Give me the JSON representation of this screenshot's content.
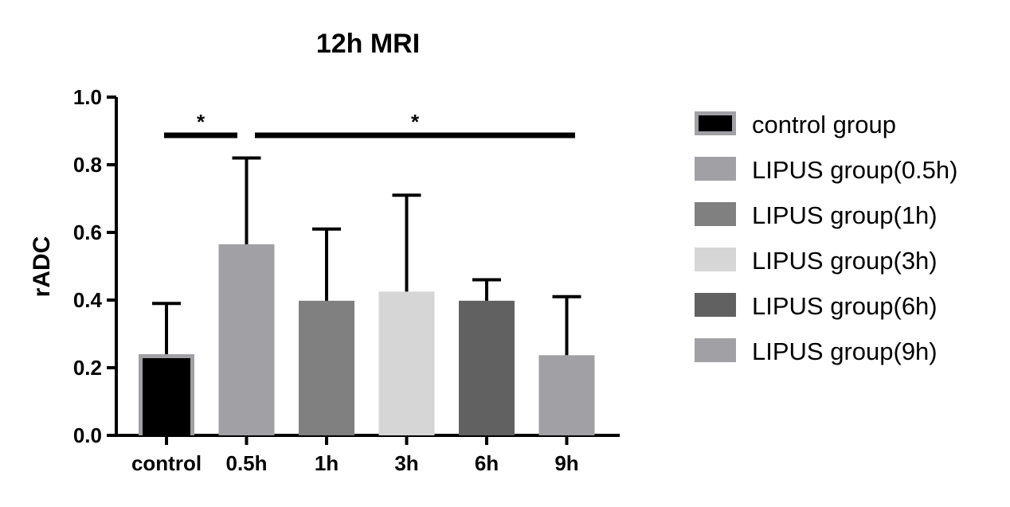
{
  "chart_data": {
    "type": "bar",
    "title": "12h MRI",
    "xlabel": "",
    "ylabel": "rADC",
    "ylim": [
      0,
      1.0
    ],
    "yticks": [
      "0.0",
      "0.2",
      "0.4",
      "0.6",
      "0.8",
      "1.0"
    ],
    "categories": [
      "control",
      "0.5h",
      "1h",
      "3h",
      "6h",
      "9h"
    ],
    "values": [
      0.24,
      0.565,
      0.398,
      0.425,
      0.398,
      0.237
    ],
    "error_upper": [
      0.39,
      0.82,
      0.61,
      0.71,
      0.46,
      0.41
    ],
    "colors": [
      "#000000",
      "#a1a0a5",
      "#808080",
      "#d6d6d6",
      "#616161",
      "#a1a0a5"
    ],
    "legend": {
      "position": "right",
      "entries": [
        {
          "label": "control group",
          "color": "#000000"
        },
        {
          "label": "LIPUS group(0.5h)",
          "color": "#a1a0a5"
        },
        {
          "label": "LIPUS group(1h)",
          "color": "#808080"
        },
        {
          "label": "LIPUS group(3h)",
          "color": "#d6d6d6"
        },
        {
          "label": "LIPUS group(6h)",
          "color": "#616161"
        },
        {
          "label": "LIPUS group(9h)",
          "color": "#a1a0a5"
        }
      ]
    },
    "significance": [
      {
        "label": "*",
        "from": 0,
        "to": 1
      },
      {
        "label": "*",
        "from": 1,
        "to": 5
      }
    ],
    "grid": false
  }
}
